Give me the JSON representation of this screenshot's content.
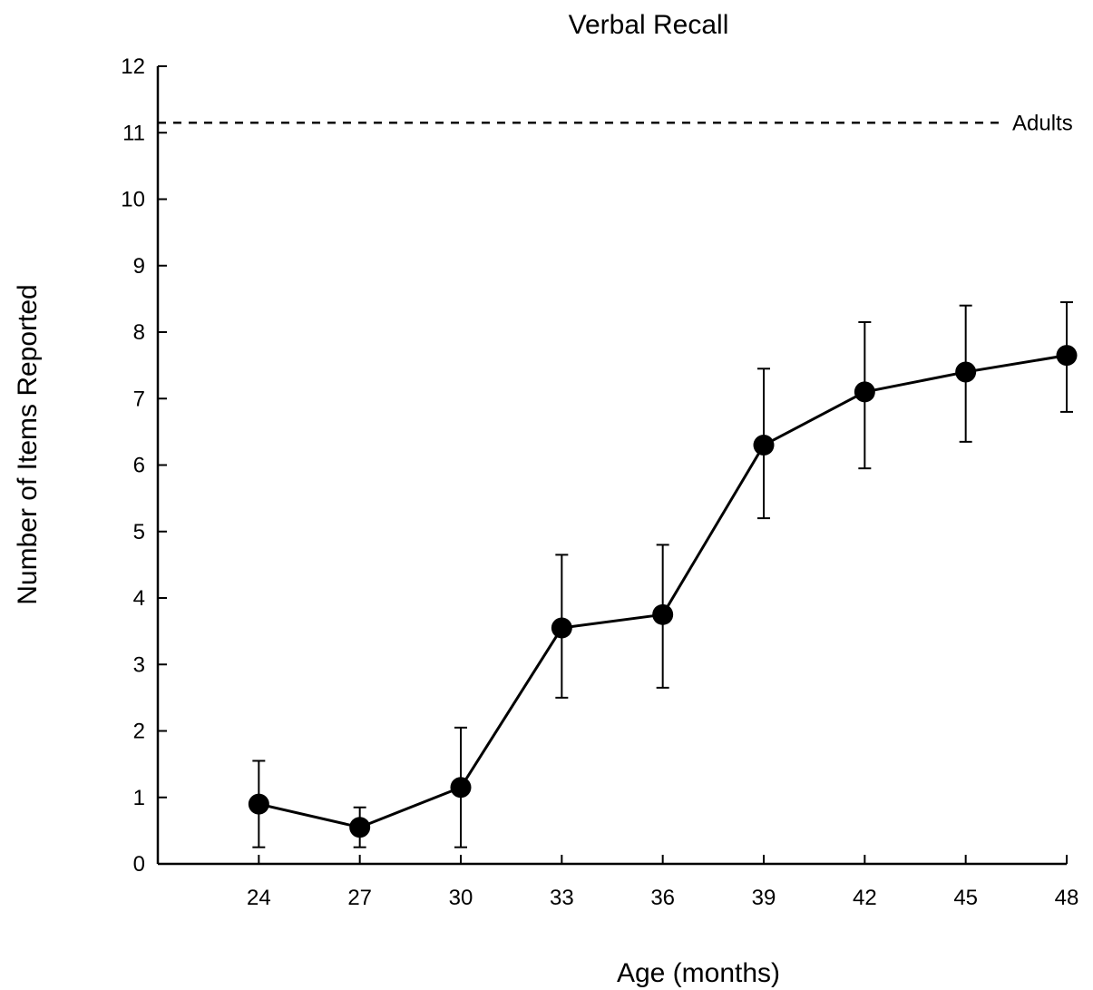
{
  "chart_data": {
    "type": "line",
    "title": "Verbal Recall",
    "xlabel": "Age (months)",
    "ylabel": "Number of Items Reported",
    "x": [
      24,
      27,
      30,
      33,
      36,
      39,
      42,
      45,
      48
    ],
    "y": [
      0.9,
      0.55,
      1.15,
      3.55,
      3.75,
      6.3,
      7.1,
      7.4,
      7.65
    ],
    "error_lower": [
      0.25,
      0.25,
      0.25,
      2.5,
      2.65,
      5.2,
      5.95,
      6.35,
      6.8
    ],
    "error_upper": [
      1.55,
      0.85,
      2.05,
      4.65,
      4.8,
      7.45,
      8.15,
      8.4,
      8.45
    ],
    "xlim": [
      21,
      48
    ],
    "ylim": [
      0,
      12
    ],
    "xticks": [
      "24",
      "27",
      "30",
      "33",
      "36",
      "39",
      "42",
      "45",
      "48"
    ],
    "yticks": [
      "0",
      "1",
      "2",
      "3",
      "4",
      "5",
      "6",
      "7",
      "8",
      "9",
      "10",
      "11",
      "12"
    ],
    "reference_line": {
      "label": "Adults",
      "value": 11.15,
      "style": "dashed"
    },
    "grid": false,
    "marker": "filled-circle",
    "color": "#000000"
  }
}
